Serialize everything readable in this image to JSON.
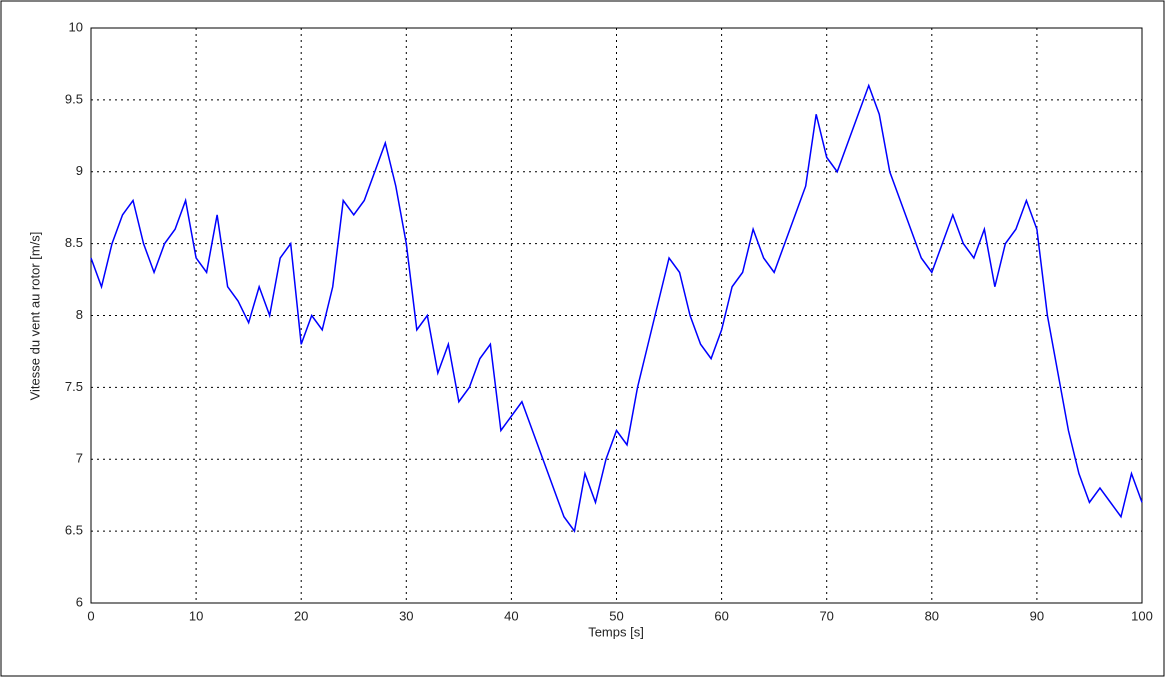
{
  "chart_data": {
    "type": "line",
    "xlabel": "Temps [s]",
    "ylabel": "Vitesse du vent au rotor [m/s]",
    "x": [
      0,
      1,
      2,
      3,
      4,
      5,
      6,
      7,
      8,
      9,
      10,
      11,
      12,
      13,
      14,
      15,
      16,
      17,
      18,
      19,
      20,
      21,
      22,
      23,
      24,
      25,
      26,
      27,
      28,
      29,
      30,
      31,
      32,
      33,
      34,
      35,
      36,
      37,
      38,
      39,
      40,
      41,
      42,
      43,
      44,
      45,
      46,
      47,
      48,
      49,
      50,
      51,
      52,
      53,
      54,
      55,
      56,
      57,
      58,
      59,
      60,
      61,
      62,
      63,
      64,
      65,
      66,
      67,
      68,
      69,
      70,
      71,
      72,
      73,
      74,
      75,
      76,
      77,
      78,
      79,
      80,
      81,
      82,
      83,
      84,
      85,
      86,
      87,
      88,
      89,
      90,
      91,
      92,
      93,
      94,
      95,
      96,
      97,
      98,
      99,
      100
    ],
    "series": [
      {
        "name": "Vitesse",
        "color": "#0000ff",
        "values": [
          8.4,
          8.2,
          8.5,
          8.7,
          8.8,
          8.5,
          8.3,
          8.5,
          8.6,
          8.8,
          8.4,
          8.3,
          8.7,
          8.2,
          8.1,
          7.95,
          8.2,
          8.0,
          8.4,
          8.5,
          7.8,
          8.0,
          7.9,
          8.2,
          8.8,
          8.7,
          8.8,
          9.0,
          9.2,
          8.9,
          8.5,
          7.9,
          8.0,
          7.6,
          7.8,
          7.4,
          7.5,
          7.7,
          7.8,
          7.2,
          7.3,
          7.4,
          7.2,
          7.0,
          6.8,
          6.6,
          6.5,
          6.9,
          6.7,
          7.0,
          7.2,
          7.1,
          7.5,
          7.8,
          8.1,
          8.4,
          8.3,
          8.0,
          7.8,
          7.7,
          7.9,
          8.2,
          8.3,
          8.6,
          8.4,
          8.3,
          8.5,
          8.7,
          8.9,
          9.4,
          9.1,
          9.0,
          9.2,
          9.4,
          9.6,
          9.4,
          9.0,
          8.8,
          8.6,
          8.4,
          8.3,
          8.5,
          8.7,
          8.5,
          8.4,
          8.6,
          8.2,
          8.5,
          8.6,
          8.8,
          8.6,
          8.0,
          7.6,
          7.2,
          6.9,
          6.7,
          6.8,
          6.7,
          6.6,
          6.9,
          6.7
        ]
      }
    ],
    "xlim": [
      0,
      100
    ],
    "ylim": [
      6,
      10
    ],
    "xticks": [
      0,
      10,
      20,
      30,
      40,
      50,
      60,
      70,
      80,
      90,
      100
    ],
    "yticks": [
      6,
      6.5,
      7,
      7.5,
      8,
      8.5,
      9,
      9.5,
      10
    ],
    "grid": true
  }
}
